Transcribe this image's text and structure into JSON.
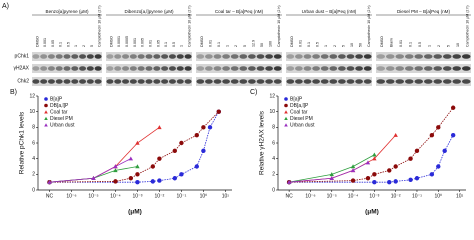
{
  "panel_a": {
    "label": "A)",
    "rows": [
      "pChk1",
      "γH2AX",
      "Chk2"
    ],
    "groups": [
      {
        "header": "Benzo[a]pyrene (μM)",
        "lanes": [
          "DMSO",
          "0.001",
          "0.05",
          "0.1",
          "0.5",
          "1",
          "2",
          "5",
          "Camptothecin 10 μM (2 h)"
        ]
      },
      {
        "header": "Dibenzo[a,l]pyrene (μM)",
        "lanes": [
          "DMSO",
          "0.0001",
          "0.0005",
          "0.001",
          "0.005",
          "0.01",
          "0.05",
          "0.1",
          "0.5",
          "1",
          "Camptothecin 10 μM (2 h)"
        ]
      },
      {
        "header": "Coal tar – B[a]Peq (nM)",
        "lanes": [
          "DMSO",
          "0.01",
          "0.1",
          "1",
          "2",
          "5",
          "12.9",
          "50",
          "100",
          "Camptothecin 10 μM (2 h)"
        ]
      },
      {
        "header": "Urban dust – B[a]Peq (nM)",
        "lanes": [
          "DMSO",
          "0.01",
          "0.1",
          "0.5",
          "1",
          "2",
          "5",
          "10",
          "50",
          "Camptothecin 10 μM (2 h)"
        ]
      },
      {
        "header": "Diesel PM – B[a]Peq (nM)",
        "lanes": [
          "DMSO",
          "Blank",
          "0.01",
          "0.1",
          "0.5",
          "1",
          "2",
          "5",
          "10",
          "Camptothecin 10 μM (2 h)"
        ]
      }
    ]
  },
  "chart_data": [
    {
      "type": "scatter",
      "panel_label": "B)",
      "y_label": "Relative pChk1 levels",
      "x_label": "(μM)",
      "log_x": true,
      "xlim": [
        3e-08,
        20
      ],
      "ylim": [
        0,
        12
      ],
      "yticks": [
        0,
        2,
        4,
        6,
        8,
        10,
        12
      ],
      "xticks": [
        {
          "value": 1e-07,
          "label": "NC"
        },
        {
          "value": 1e-06,
          "label": "10⁻⁶"
        },
        {
          "value": 1e-05,
          "label": "10⁻⁵"
        },
        {
          "value": 0.0001,
          "label": "10⁻⁴"
        },
        {
          "value": 0.001,
          "label": "10⁻³"
        },
        {
          "value": 0.01,
          "label": "10⁻²"
        },
        {
          "value": 0.1,
          "label": "10⁻¹"
        },
        {
          "value": 1,
          "label": "10⁰"
        },
        {
          "value": 10,
          "label": "10¹"
        }
      ],
      "legend": "upper left",
      "series": [
        {
          "name": "B[a]P",
          "color": "#2a2ad8",
          "marker": "circle",
          "x": [
            1e-07,
            0.001,
            0.005,
            0.01,
            0.05,
            0.1,
            0.5,
            1,
            2,
            5
          ],
          "values": [
            1,
            1,
            1.1,
            1.2,
            1.5,
            2,
            3,
            5,
            8,
            10
          ]
        },
        {
          "name": "DB[a,l]P",
          "color": "#8b0a0a",
          "marker": "circle",
          "x": [
            1e-07,
            0.0001,
            0.0005,
            0.001,
            0.005,
            0.01,
            0.05,
            0.1,
            0.5,
            1,
            5
          ],
          "values": [
            1,
            1.1,
            1.5,
            2,
            3,
            4,
            5,
            6,
            7,
            8,
            10
          ]
        },
        {
          "name": "Coal tar",
          "color": "#e03030",
          "marker": "triangle",
          "x": [
            1e-07,
            1e-05,
            0.0001,
            0.001,
            0.01
          ],
          "values": [
            1,
            1.5,
            3,
            6,
            8
          ]
        },
        {
          "name": "Diesel PM",
          "color": "#2e9e3e",
          "marker": "triangle",
          "x": [
            1e-07,
            1e-05,
            0.0001,
            0.001
          ],
          "values": [
            1,
            1.5,
            2.5,
            3
          ]
        },
        {
          "name": "Urban dust",
          "color": "#9a2fc0",
          "marker": "triangle",
          "x": [
            1e-07,
            1e-05,
            0.0001,
            0.0005
          ],
          "values": [
            1,
            1.5,
            3,
            4
          ]
        }
      ]
    },
    {
      "type": "scatter",
      "panel_label": "C)",
      "y_label": "Relative γH2AX levels",
      "x_label": "(μM)",
      "log_x": true,
      "xlim": [
        3e-08,
        20
      ],
      "ylim": [
        0,
        12
      ],
      "yticks": [
        0,
        2,
        4,
        6,
        8,
        10,
        12
      ],
      "xticks": [
        {
          "value": 1e-07,
          "label": "NC"
        },
        {
          "value": 1e-06,
          "label": "10⁻⁶"
        },
        {
          "value": 1e-05,
          "label": "10⁻⁵"
        },
        {
          "value": 0.0001,
          "label": "10⁻⁴"
        },
        {
          "value": 0.001,
          "label": "10⁻³"
        },
        {
          "value": 0.01,
          "label": "10⁻²"
        },
        {
          "value": 0.1,
          "label": "10⁻¹"
        },
        {
          "value": 1,
          "label": "10⁰"
        },
        {
          "value": 10,
          "label": "10¹"
        }
      ],
      "legend": "upper left",
      "series": [
        {
          "name": "B[a]P",
          "color": "#2a2ad8",
          "marker": "circle",
          "x": [
            1e-07,
            0.001,
            0.005,
            0.01,
            0.05,
            0.1,
            0.5,
            1,
            2,
            5
          ],
          "values": [
            1,
            1,
            1,
            1.1,
            1.3,
            1.5,
            2,
            3,
            5,
            7
          ]
        },
        {
          "name": "DB[a,l]P",
          "color": "#8b0a0a",
          "marker": "circle",
          "x": [
            1e-07,
            0.0001,
            0.0005,
            0.001,
            0.005,
            0.01,
            0.05,
            0.1,
            0.5,
            1,
            5
          ],
          "values": [
            1,
            1.2,
            1.5,
            2,
            2.5,
            3,
            4,
            5,
            7,
            8,
            10.5
          ]
        },
        {
          "name": "Coal tar",
          "color": "#e03030",
          "marker": "triangle",
          "x": [
            1e-07,
            1e-05,
            0.0001,
            0.001,
            0.01
          ],
          "values": [
            1,
            1.5,
            2.5,
            4,
            7
          ]
        },
        {
          "name": "Diesel PM",
          "color": "#2e9e3e",
          "marker": "triangle",
          "x": [
            1e-07,
            1e-05,
            0.0001,
            0.001
          ],
          "values": [
            1,
            2,
            3,
            4.5
          ]
        },
        {
          "name": "Urban dust",
          "color": "#9a2fc0",
          "marker": "triangle",
          "x": [
            1e-07,
            1e-05,
            0.0001,
            0.0005
          ],
          "values": [
            1,
            1.5,
            2.5,
            3.5
          ]
        }
      ]
    }
  ]
}
